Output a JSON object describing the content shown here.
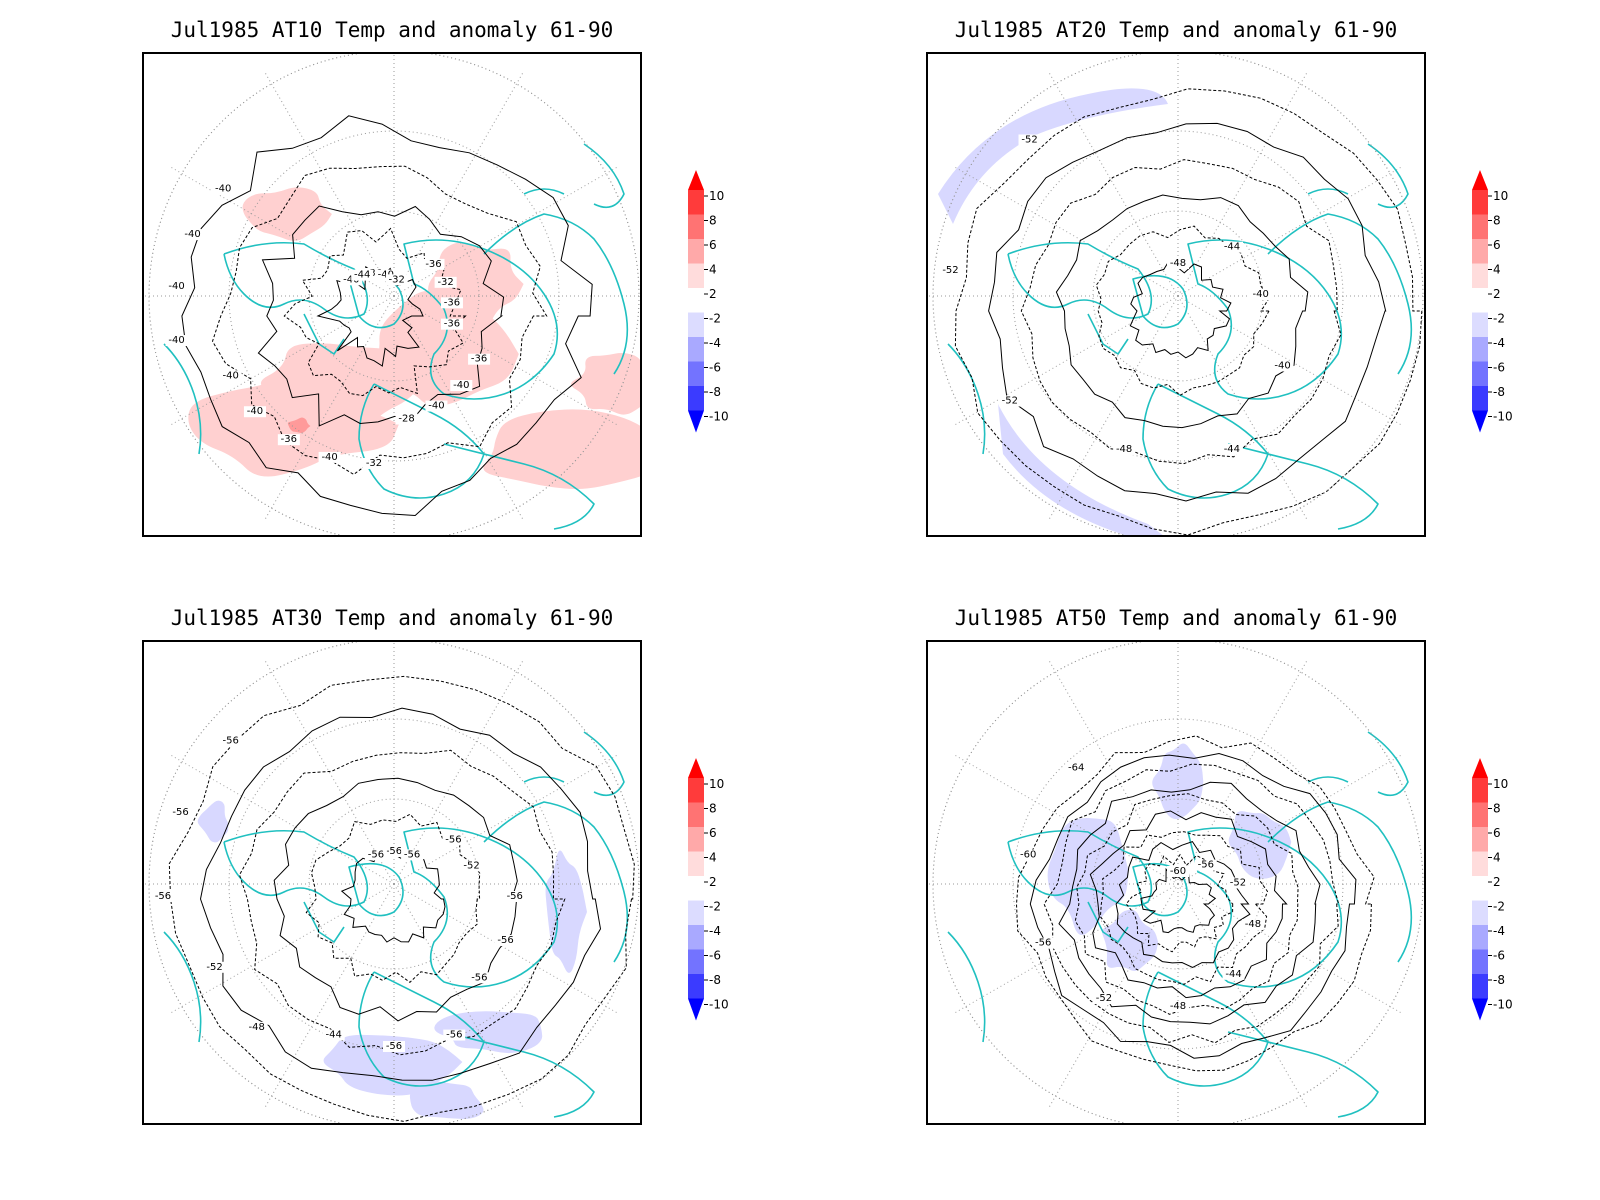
{
  "panels": [
    {
      "title": "Jul1985 AT10 Temp and anomaly 61-90",
      "contour_labels": [
        "-36",
        "-40",
        "-32",
        "-36",
        "-32",
        "-36",
        "-36",
        "-36",
        "-40",
        "-40",
        "-28",
        "-32",
        "-40",
        "-36",
        "-40",
        "-40",
        "-40",
        "-40",
        "-40",
        "-40",
        "-40",
        "-44"
      ],
      "anomaly": "warm"
    },
    {
      "title": "Jul1985 AT20 Temp and anomaly 61-90",
      "contour_labels": [
        "-48",
        "-44",
        "-40",
        "-40",
        "-44",
        "-48",
        "-52",
        "-52",
        "-52"
      ],
      "anomaly": "cold"
    },
    {
      "title": "Jul1985 AT30 Temp and anomaly 61-90",
      "contour_labels": [
        "-56",
        "-56",
        "-56",
        "-52",
        "-56",
        "-56",
        "-56",
        "-56",
        "-56",
        "-44",
        "-48",
        "-52",
        "-56",
        "-56",
        "-56",
        "-56"
      ],
      "anomaly": "cold"
    },
    {
      "title": "Jul1985 AT50 Temp and anomaly 61-90",
      "contour_labels": [
        "-60",
        "-56",
        "-52",
        "-48",
        "-44",
        "-48",
        "-52",
        "-56",
        "-60",
        "-64"
      ],
      "anomaly": "cold"
    }
  ],
  "colorbar": {
    "tick_labels": [
      "10",
      "8",
      "6",
      "4",
      "2",
      "-2",
      "-4",
      "-6",
      "-8",
      "-10"
    ],
    "colors": [
      "#ff0000",
      "#ff3b3b",
      "#ff7373",
      "#ffa9a9",
      "#ffdcdc",
      "#ffffff",
      "#dcdcff",
      "#a9a9ff",
      "#7373ff",
      "#3b3bff",
      "#0000ff"
    ]
  },
  "colors": {
    "coastline": "#20c0c0",
    "contour": "#000000",
    "grid": "#999999",
    "warm_anomaly": "#ffd0d0",
    "warm_anomaly_strong": "#ff9a9a",
    "cold_anomaly": "#d8d8ff"
  }
}
